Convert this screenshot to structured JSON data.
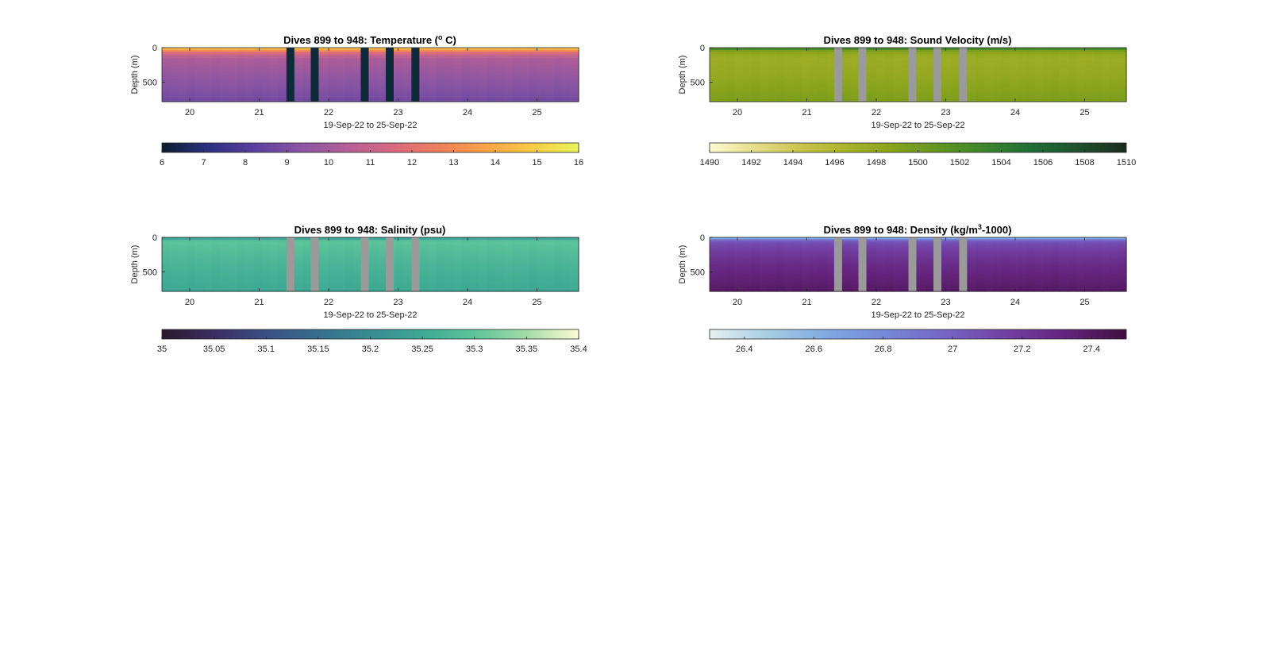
{
  "figure": {
    "background": "#ffffff",
    "gap_color_dark": "#0f2b3a",
    "gap_color_gray": "#9a9a9a"
  },
  "chart_data": [
    {
      "type": "heatmap",
      "variable": "temperature",
      "title": "Dives 899 to 948: Temperature (",
      "title_sup": "o",
      "title_post": " C)",
      "xlabel": "19-Sep-22 to 25-Sep-22",
      "ylabel": "Depth (m)",
      "x_ticks": [
        20,
        21,
        22,
        23,
        24,
        25
      ],
      "xlim": [
        19.6,
        25.6
      ],
      "y_ticks": [
        0,
        500
      ],
      "ylim": [
        780,
        0
      ],
      "y_reversed": true,
      "missing_dives_x": [
        21.45,
        21.8,
        22.52,
        22.88,
        23.25
      ],
      "missing_color": "#0f2b3a",
      "profile": {
        "depth": [
          0,
          30,
          60,
          150,
          400,
          780
        ],
        "values": [
          15.0,
          14.0,
          12.0,
          10.3,
          9.6,
          8.8
        ]
      },
      "colorbar": {
        "range": [
          6,
          16
        ],
        "ticks": [
          6,
          7,
          8,
          9,
          10,
          11,
          12,
          13,
          14,
          15,
          16
        ],
        "tick_labels": [
          "6",
          "7",
          "8",
          "9",
          "10",
          "11",
          "12",
          "13",
          "14",
          "15",
          "16"
        ],
        "colormap": [
          "#0b1e2e",
          "#2a2f7e",
          "#5b3f9e",
          "#8a55a3",
          "#b45f97",
          "#d86a7f",
          "#ee7f5c",
          "#f8a346",
          "#f9cb45",
          "#e7f45a"
        ]
      }
    },
    {
      "type": "heatmap",
      "variable": "sound_velocity",
      "title": "Dives 899 to 948: Sound Velocity (m/s)",
      "title_sup": "",
      "title_post": "",
      "xlabel": "19-Sep-22 to 25-Sep-22",
      "ylabel": "Depth (m)",
      "x_ticks": [
        20,
        21,
        22,
        23,
        24,
        25
      ],
      "xlim": [
        19.6,
        25.6
      ],
      "y_ticks": [
        0,
        500
      ],
      "ylim": [
        780,
        0
      ],
      "y_reversed": true,
      "missing_dives_x": [
        21.45,
        21.8,
        22.52,
        22.88,
        23.25
      ],
      "missing_color": "#9a9a9a",
      "profile": {
        "depth": [
          0,
          30,
          60,
          150,
          400,
          780
        ],
        "values": [
          1504.5,
          1501.0,
          1498.5,
          1497.5,
          1498.0,
          1499.5
        ]
      },
      "colorbar": {
        "range": [
          1490,
          1510
        ],
        "ticks": [
          1490,
          1492,
          1494,
          1496,
          1498,
          1500,
          1502,
          1504,
          1506,
          1508,
          1510
        ],
        "tick_labels": [
          "1490",
          "1492",
          "1494",
          "1496",
          "1498",
          "1500",
          "1502",
          "1504",
          "1506",
          "1508",
          "1510"
        ],
        "colormap": [
          "#fdfbd2",
          "#e5dc8a",
          "#c8c44c",
          "#a8b22a",
          "#87a21c",
          "#5f9420",
          "#3b8430",
          "#1f6c36",
          "#1f4f2c",
          "#1b2a1e"
        ]
      }
    },
    {
      "type": "heatmap",
      "variable": "salinity",
      "title": "Dives 899 to 948: Salinity (psu)",
      "title_sup": "",
      "title_post": "",
      "xlabel": "19-Sep-22 to 25-Sep-22",
      "ylabel": "Depth (m)",
      "x_ticks": [
        20,
        21,
        22,
        23,
        24,
        25
      ],
      "xlim": [
        19.6,
        25.6
      ],
      "y_ticks": [
        0,
        500
      ],
      "ylim": [
        780,
        0
      ],
      "y_reversed": true,
      "missing_dives_x": [
        21.45,
        21.8,
        22.52,
        22.88,
        23.25
      ],
      "missing_color": "#9a9a9a",
      "profile": {
        "depth": [
          0,
          30,
          60,
          150,
          400,
          780
        ],
        "values": [
          35.2,
          35.27,
          35.3,
          35.29,
          35.27,
          35.25
        ]
      },
      "colorbar": {
        "range": [
          35,
          35.4
        ],
        "ticks": [
          35,
          35.05,
          35.1,
          35.15,
          35.2,
          35.25,
          35.3,
          35.35,
          35.4
        ],
        "tick_labels": [
          "35",
          "35.05",
          "35.1",
          "35.15",
          "35.2",
          "35.25",
          "35.3",
          "35.35",
          "35.4"
        ],
        "colormap": [
          "#281a2c",
          "#3a2e63",
          "#3b4f86",
          "#376e8e",
          "#388c93",
          "#3ea994",
          "#5dc49a",
          "#a3dba8",
          "#fdfbd5"
        ]
      }
    },
    {
      "type": "heatmap",
      "variable": "density",
      "title": "Dives 899 to 948: Density (kg/m",
      "title_sup": "3",
      "title_post": "-1000)",
      "xlabel": "19-Sep-22 to 25-Sep-22",
      "ylabel": "Depth (m)",
      "x_ticks": [
        20,
        21,
        22,
        23,
        24,
        25
      ],
      "xlim": [
        19.6,
        25.6
      ],
      "y_ticks": [
        0,
        500
      ],
      "ylim": [
        780,
        0
      ],
      "y_reversed": true,
      "missing_dives_x": [
        21.45,
        21.8,
        22.52,
        22.88,
        23.25
      ],
      "missing_color": "#9a9a9a",
      "profile": {
        "depth": [
          0,
          30,
          60,
          150,
          400,
          780
        ],
        "values": [
          26.45,
          26.9,
          27.05,
          27.15,
          27.28,
          27.4
        ]
      },
      "colorbar": {
        "range": [
          26.3,
          27.5
        ],
        "ticks": [
          26.4,
          26.6,
          26.8,
          27,
          27.2,
          27.4
        ],
        "tick_labels": [
          "26.4",
          "26.6",
          "26.8",
          "27",
          "27.2",
          "27.4"
        ],
        "colormap": [
          "#e6f0f0",
          "#a5cde3",
          "#7fa7e2",
          "#7686d8",
          "#7563c4",
          "#723fa2",
          "#64237b",
          "#3f0f40"
        ]
      }
    }
  ]
}
